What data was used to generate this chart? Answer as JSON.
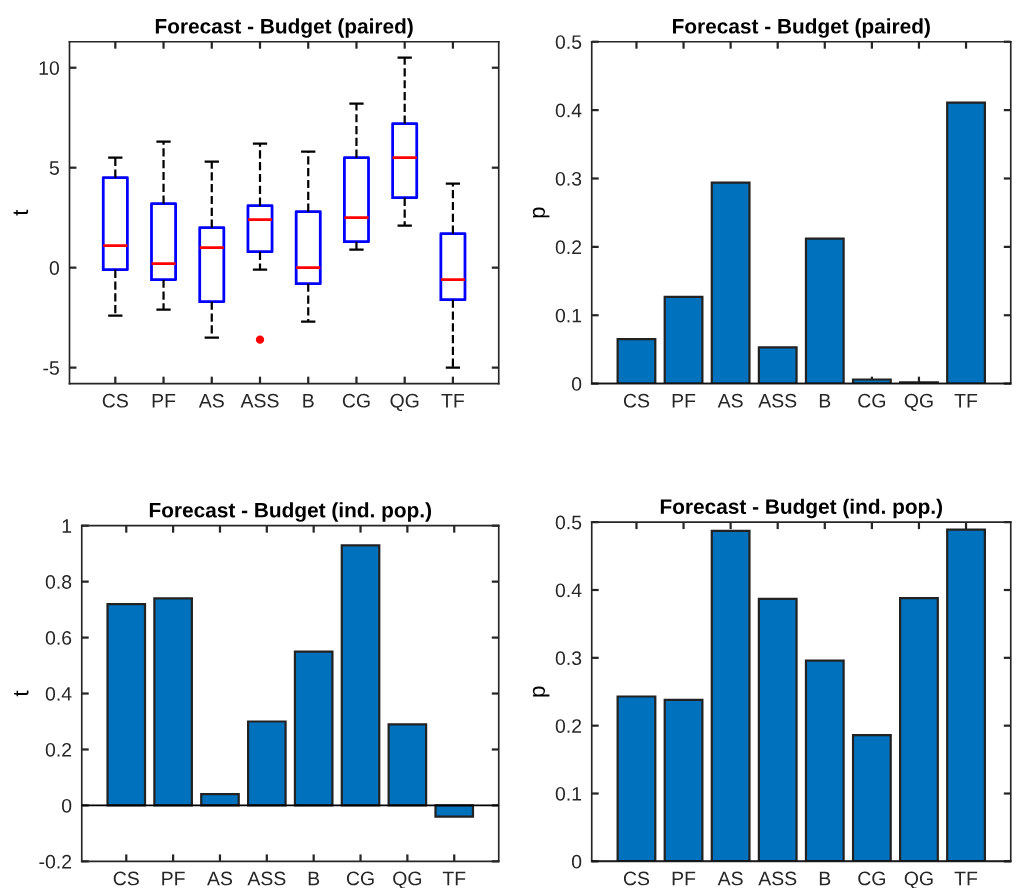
{
  "chart_data": [
    {
      "type": "box",
      "title": "Forecast - Budget (paired)",
      "ylabel": "t",
      "categories": [
        "CS",
        "PF",
        "AS",
        "ASS",
        "B",
        "CG",
        "QG",
        "TF"
      ],
      "color": "#0000ff",
      "ylim": [
        -5.8,
        11.3
      ],
      "yticks": [
        -5,
        0,
        5,
        10
      ],
      "boxes": [
        {
          "low": -2.4,
          "q1": -0.1,
          "median": 1.1,
          "q3": 4.5,
          "high": 5.5
        },
        {
          "low": -2.1,
          "q1": -0.6,
          "median": 0.2,
          "q3": 3.2,
          "high": 6.3
        },
        {
          "low": -3.5,
          "q1": -1.7,
          "median": 1.0,
          "q3": 2.0,
          "high": 5.3
        },
        {
          "low": -0.1,
          "q1": 0.8,
          "median": 2.4,
          "q3": 3.1,
          "high": 6.2,
          "outliers": [
            -3.6
          ]
        },
        {
          "low": -2.7,
          "q1": -0.8,
          "median": 0.0,
          "q3": 2.8,
          "high": 5.8
        },
        {
          "low": 0.9,
          "q1": 1.3,
          "median": 2.5,
          "q3": 5.5,
          "high": 8.2
        },
        {
          "low": 2.1,
          "q1": 3.5,
          "median": 5.5,
          "q3": 7.2,
          "high": 10.5
        },
        {
          "low": -5.0,
          "q1": -1.6,
          "median": -0.6,
          "q3": 1.7,
          "high": 4.2
        }
      ]
    },
    {
      "type": "bar",
      "title": "Forecast - Budget (paired)",
      "ylabel": "p",
      "categories": [
        "CS",
        "PF",
        "AS",
        "ASS",
        "B",
        "CG",
        "QG",
        "TF"
      ],
      "color": "#0072bd",
      "ylim": [
        0,
        0.5
      ],
      "yticks": [
        0,
        0.1,
        0.2,
        0.3,
        0.4,
        0.5
      ],
      "values": [
        0.065,
        0.127,
        0.294,
        0.053,
        0.212,
        0.006,
        0.002,
        0.411
      ]
    },
    {
      "type": "bar",
      "title": "Forecast - Budget (ind. pop.)",
      "ylabel": "t",
      "categories": [
        "CS",
        "PF",
        "AS",
        "ASS",
        "B",
        "CG",
        "QG",
        "TF"
      ],
      "color": "#0072bd",
      "ylim": [
        -0.2,
        1
      ],
      "yticks": [
        -0.2,
        0,
        0.2,
        0.4,
        0.6,
        0.8,
        1
      ],
      "values": [
        0.72,
        0.74,
        0.04,
        0.3,
        0.55,
        0.93,
        0.29,
        -0.04
      ]
    },
    {
      "type": "bar",
      "title": "Forecast - Budget (ind. pop.)",
      "ylabel": "p",
      "categories": [
        "CS",
        "PF",
        "AS",
        "ASS",
        "B",
        "CG",
        "QG",
        "TF"
      ],
      "color": "#0072bd",
      "ylim": [
        0,
        0.5
      ],
      "yticks": [
        0,
        0.1,
        0.2,
        0.3,
        0.4,
        0.5
      ],
      "values": [
        0.243,
        0.238,
        0.487,
        0.387,
        0.296,
        0.186,
        0.388,
        0.489
      ]
    }
  ]
}
